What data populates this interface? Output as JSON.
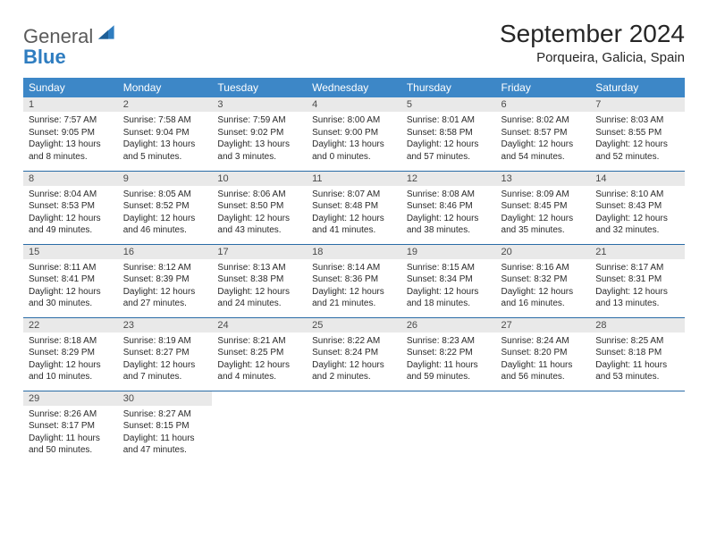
{
  "logo": {
    "line1": "General",
    "line2": "Blue"
  },
  "title": "September 2024",
  "location": "Porqueira, Galicia, Spain",
  "colors": {
    "header_bg": "#3d87c7",
    "header_fg": "#ffffff",
    "daynum_bg": "#e9e9e9",
    "rule": "#2a6ca6",
    "logo_gray": "#5a5a5a",
    "logo_blue": "#2f7dc0"
  },
  "weekdays": [
    "Sunday",
    "Monday",
    "Tuesday",
    "Wednesday",
    "Thursday",
    "Friday",
    "Saturday"
  ],
  "weeks": [
    [
      {
        "n": "1",
        "sr": "Sunrise: 7:57 AM",
        "ss": "Sunset: 9:05 PM",
        "dl": "Daylight: 13 hours and 8 minutes."
      },
      {
        "n": "2",
        "sr": "Sunrise: 7:58 AM",
        "ss": "Sunset: 9:04 PM",
        "dl": "Daylight: 13 hours and 5 minutes."
      },
      {
        "n": "3",
        "sr": "Sunrise: 7:59 AM",
        "ss": "Sunset: 9:02 PM",
        "dl": "Daylight: 13 hours and 3 minutes."
      },
      {
        "n": "4",
        "sr": "Sunrise: 8:00 AM",
        "ss": "Sunset: 9:00 PM",
        "dl": "Daylight: 13 hours and 0 minutes."
      },
      {
        "n": "5",
        "sr": "Sunrise: 8:01 AM",
        "ss": "Sunset: 8:58 PM",
        "dl": "Daylight: 12 hours and 57 minutes."
      },
      {
        "n": "6",
        "sr": "Sunrise: 8:02 AM",
        "ss": "Sunset: 8:57 PM",
        "dl": "Daylight: 12 hours and 54 minutes."
      },
      {
        "n": "7",
        "sr": "Sunrise: 8:03 AM",
        "ss": "Sunset: 8:55 PM",
        "dl": "Daylight: 12 hours and 52 minutes."
      }
    ],
    [
      {
        "n": "8",
        "sr": "Sunrise: 8:04 AM",
        "ss": "Sunset: 8:53 PM",
        "dl": "Daylight: 12 hours and 49 minutes."
      },
      {
        "n": "9",
        "sr": "Sunrise: 8:05 AM",
        "ss": "Sunset: 8:52 PM",
        "dl": "Daylight: 12 hours and 46 minutes."
      },
      {
        "n": "10",
        "sr": "Sunrise: 8:06 AM",
        "ss": "Sunset: 8:50 PM",
        "dl": "Daylight: 12 hours and 43 minutes."
      },
      {
        "n": "11",
        "sr": "Sunrise: 8:07 AM",
        "ss": "Sunset: 8:48 PM",
        "dl": "Daylight: 12 hours and 41 minutes."
      },
      {
        "n": "12",
        "sr": "Sunrise: 8:08 AM",
        "ss": "Sunset: 8:46 PM",
        "dl": "Daylight: 12 hours and 38 minutes."
      },
      {
        "n": "13",
        "sr": "Sunrise: 8:09 AM",
        "ss": "Sunset: 8:45 PM",
        "dl": "Daylight: 12 hours and 35 minutes."
      },
      {
        "n": "14",
        "sr": "Sunrise: 8:10 AM",
        "ss": "Sunset: 8:43 PM",
        "dl": "Daylight: 12 hours and 32 minutes."
      }
    ],
    [
      {
        "n": "15",
        "sr": "Sunrise: 8:11 AM",
        "ss": "Sunset: 8:41 PM",
        "dl": "Daylight: 12 hours and 30 minutes."
      },
      {
        "n": "16",
        "sr": "Sunrise: 8:12 AM",
        "ss": "Sunset: 8:39 PM",
        "dl": "Daylight: 12 hours and 27 minutes."
      },
      {
        "n": "17",
        "sr": "Sunrise: 8:13 AM",
        "ss": "Sunset: 8:38 PM",
        "dl": "Daylight: 12 hours and 24 minutes."
      },
      {
        "n": "18",
        "sr": "Sunrise: 8:14 AM",
        "ss": "Sunset: 8:36 PM",
        "dl": "Daylight: 12 hours and 21 minutes."
      },
      {
        "n": "19",
        "sr": "Sunrise: 8:15 AM",
        "ss": "Sunset: 8:34 PM",
        "dl": "Daylight: 12 hours and 18 minutes."
      },
      {
        "n": "20",
        "sr": "Sunrise: 8:16 AM",
        "ss": "Sunset: 8:32 PM",
        "dl": "Daylight: 12 hours and 16 minutes."
      },
      {
        "n": "21",
        "sr": "Sunrise: 8:17 AM",
        "ss": "Sunset: 8:31 PM",
        "dl": "Daylight: 12 hours and 13 minutes."
      }
    ],
    [
      {
        "n": "22",
        "sr": "Sunrise: 8:18 AM",
        "ss": "Sunset: 8:29 PM",
        "dl": "Daylight: 12 hours and 10 minutes."
      },
      {
        "n": "23",
        "sr": "Sunrise: 8:19 AM",
        "ss": "Sunset: 8:27 PM",
        "dl": "Daylight: 12 hours and 7 minutes."
      },
      {
        "n": "24",
        "sr": "Sunrise: 8:21 AM",
        "ss": "Sunset: 8:25 PM",
        "dl": "Daylight: 12 hours and 4 minutes."
      },
      {
        "n": "25",
        "sr": "Sunrise: 8:22 AM",
        "ss": "Sunset: 8:24 PM",
        "dl": "Daylight: 12 hours and 2 minutes."
      },
      {
        "n": "26",
        "sr": "Sunrise: 8:23 AM",
        "ss": "Sunset: 8:22 PM",
        "dl": "Daylight: 11 hours and 59 minutes."
      },
      {
        "n": "27",
        "sr": "Sunrise: 8:24 AM",
        "ss": "Sunset: 8:20 PM",
        "dl": "Daylight: 11 hours and 56 minutes."
      },
      {
        "n": "28",
        "sr": "Sunrise: 8:25 AM",
        "ss": "Sunset: 8:18 PM",
        "dl": "Daylight: 11 hours and 53 minutes."
      }
    ],
    [
      {
        "n": "29",
        "sr": "Sunrise: 8:26 AM",
        "ss": "Sunset: 8:17 PM",
        "dl": "Daylight: 11 hours and 50 minutes."
      },
      {
        "n": "30",
        "sr": "Sunrise: 8:27 AM",
        "ss": "Sunset: 8:15 PM",
        "dl": "Daylight: 11 hours and 47 minutes."
      },
      {
        "empty": true
      },
      {
        "empty": true
      },
      {
        "empty": true
      },
      {
        "empty": true
      },
      {
        "empty": true
      }
    ]
  ]
}
